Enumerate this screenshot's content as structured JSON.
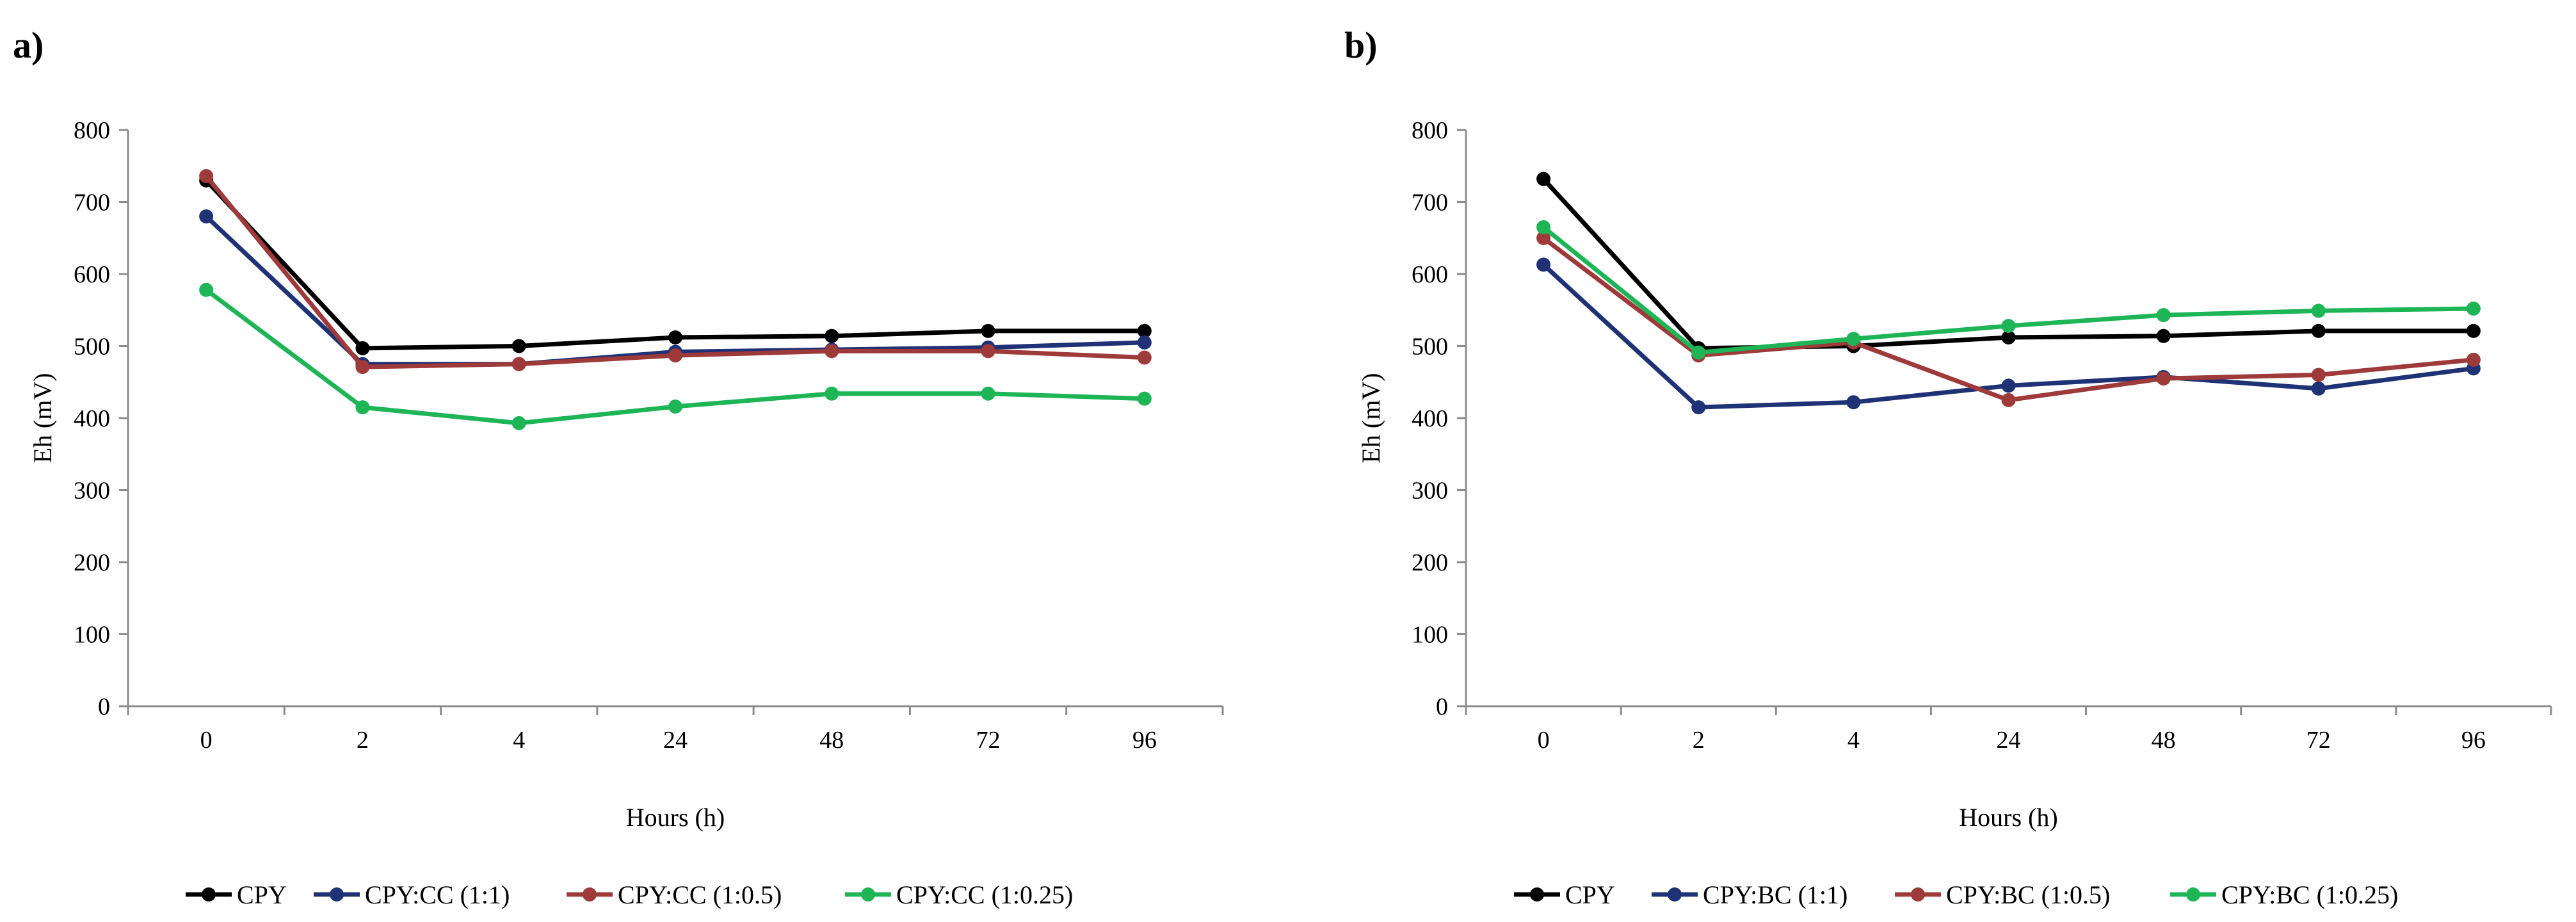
{
  "chart_data": [
    {
      "type": "line",
      "panel_label": "a)",
      "title": "",
      "xlabel": "Hours (h)",
      "ylabel": "Eh (mV)",
      "categories": [
        "0",
        "2",
        "4",
        "24",
        "48",
        "72",
        "96"
      ],
      "ylim": [
        0,
        800
      ],
      "yticks": [
        "0",
        "100",
        "200",
        "300",
        "400",
        "500",
        "600",
        "700",
        "800"
      ],
      "grid": false,
      "legend_position": "bottom",
      "series": [
        {
          "name": "CPY",
          "color": "#000000",
          "values": [
            730,
            497,
            500,
            512,
            514,
            521,
            521
          ]
        },
        {
          "name": "CPY:CC (1:1)",
          "color": "#1f3275",
          "values": [
            680,
            475,
            475,
            492,
            495,
            498,
            505
          ]
        },
        {
          "name": "CPY:CC (1:0.5)",
          "color": "#9e3a3a",
          "values": [
            736,
            471,
            475,
            487,
            493,
            493,
            484
          ]
        },
        {
          "name": "CPY:CC (1:0.25)",
          "color": "#1db556",
          "values": [
            578,
            415,
            393,
            416,
            434,
            434,
            427
          ]
        }
      ]
    },
    {
      "type": "line",
      "panel_label": "b)",
      "title": "",
      "xlabel": "Hours (h)",
      "ylabel": "Eh (mV)",
      "categories": [
        "0",
        "2",
        "4",
        "24",
        "48",
        "72",
        "96"
      ],
      "ylim": [
        0,
        800
      ],
      "yticks": [
        "0",
        "100",
        "200",
        "300",
        "400",
        "500",
        "600",
        "700",
        "800"
      ],
      "grid": false,
      "legend_position": "bottom",
      "series": [
        {
          "name": "CPY",
          "color": "#000000",
          "values": [
            732,
            497,
            500,
            512,
            514,
            521,
            521
          ]
        },
        {
          "name": "CPY:BC (1:1)",
          "color": "#1f3275",
          "values": [
            613,
            415,
            422,
            445,
            457,
            441,
            469
          ]
        },
        {
          "name": "CPY:BC (1:0.5)",
          "color": "#9e3a3a",
          "values": [
            650,
            487,
            505,
            425,
            455,
            460,
            481
          ]
        },
        {
          "name": "CPY:BC (1:0.25)",
          "color": "#1db556",
          "values": [
            665,
            491,
            510,
            528,
            543,
            549,
            552
          ]
        }
      ]
    }
  ]
}
